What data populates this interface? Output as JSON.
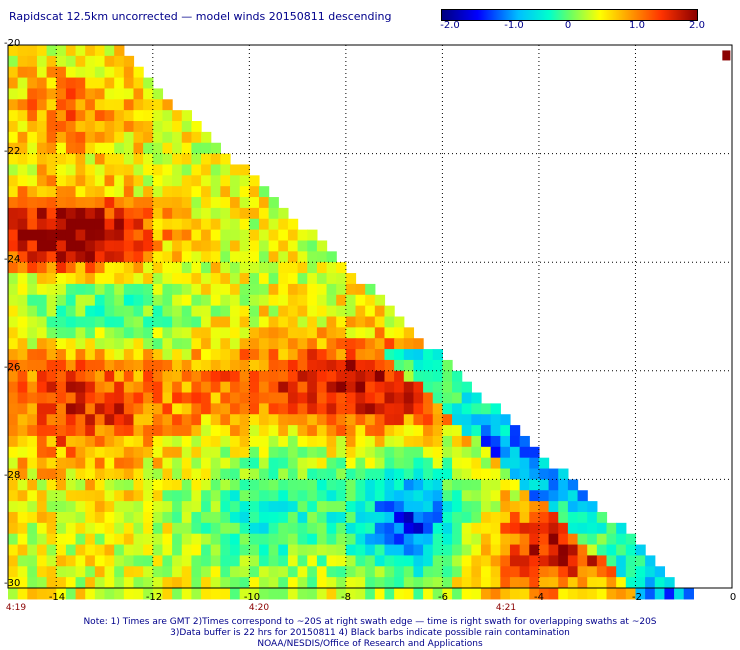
{
  "title": "Rapidscat 12.5km uncorrected — model winds 20150811 descending",
  "colorbar": {
    "ticks": [
      "-2.0",
      "-1.0",
      "0",
      "1.0",
      "2.0"
    ],
    "range": [
      -2.0,
      2.0
    ],
    "colors": [
      "#00007f",
      "#0000ff",
      "#00bfff",
      "#00ffcc",
      "#66ff66",
      "#ffff00",
      "#ff9900",
      "#ff3300",
      "#8b0000"
    ]
  },
  "axes": {
    "y_ticks": [
      "-20",
      "-22",
      "-24",
      "-26",
      "-28",
      "-30"
    ],
    "x_ticks": [
      "-14",
      "-12",
      "-10",
      "-8",
      "-6",
      "-4",
      "-2",
      "0"
    ],
    "time_labels": [
      "4:19",
      "4:20",
      "4:21"
    ],
    "grid": "dotted"
  },
  "notes": {
    "line1": "Note: 1) Times are GMT 2)Times correspond to ~20S at right swath edge — time is right swath for overlapping swaths at ~20S",
    "line2": "3)Data buffer is 22 hrs for 20150811 4) Black barbs indicate possible rain contamination",
    "line3": "NOAA/NESDIS/Office of Research and Applications"
  },
  "chart_data": {
    "type": "heatmap",
    "variable": "wind speed difference (uncorrected - model)",
    "xlim": [
      -15,
      0
    ],
    "ylim": [
      -30,
      -20
    ],
    "value_range": [
      -2.0,
      2.0
    ],
    "swath_edge": "diagonal from (-12.8, -20) to (-1, -30)",
    "features": [
      {
        "region": "lon -15 to -12.2, lat -22.8 to -24.2",
        "level": "high",
        "approx_value": 2.0
      },
      {
        "region": "lon -10.5 to -5.5, lat -25 to -27.5",
        "level": "high",
        "approx_value": 1.8
      },
      {
        "region": "lon -15 to -12, lat -25.8 to -27.5",
        "level": "high",
        "approx_value": 1.5
      },
      {
        "region": "lon -5.5 to -2, lat -28.5 to -30",
        "level": "high",
        "approx_value": 1.6
      },
      {
        "region": "lon -7.5 to -5.5, lat -28 to -29.5",
        "level": "low",
        "approx_value": -1.5
      },
      {
        "region": "swath edge lon -6 to -1, lat -26 to -30",
        "level": "low",
        "approx_value": -1.2
      }
    ]
  }
}
